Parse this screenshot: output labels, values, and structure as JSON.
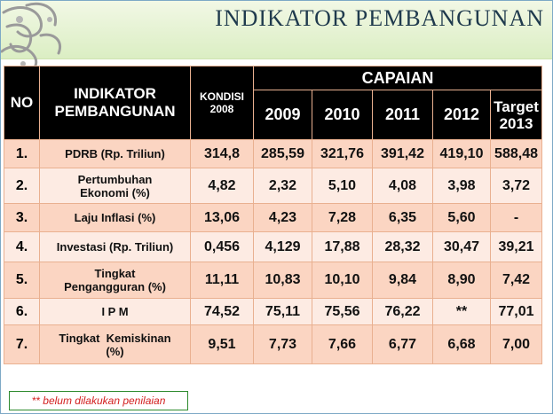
{
  "slide": {
    "title": "INDIKATOR PEMBANGUNAN"
  },
  "colors": {
    "header_bg": "#000000",
    "row_odd": "#fbd5c2",
    "row_even": "#fdebe3",
    "note_text": "#d21f1f",
    "title_band": "#dbeec3"
  },
  "table": {
    "header": {
      "no": "NO",
      "indikator_line1": "INDIKATOR",
      "indikator_line2": "PEMBANGUNAN",
      "kondisi_line1": "KONDISI",
      "kondisi_line2": "2008",
      "capaian": "CAPAIAN",
      "years": [
        "2009",
        "2010",
        "2011",
        "2012"
      ],
      "target_line1": "Target",
      "target_line2": "2013"
    },
    "rows": [
      {
        "no": "1.",
        "line1": "PDRB (Rp. Triliun)",
        "line2": "",
        "values": [
          "314,8",
          "285,59",
          "321,76",
          "391,42",
          "419,10",
          "588,48"
        ]
      },
      {
        "no": "2.",
        "line1": "Pertumbuhan",
        "line2": "Ekonomi (%)",
        "values": [
          "4,82",
          "2,32",
          "5,10",
          "4,08",
          "3,98",
          "3,72"
        ]
      },
      {
        "no": "3.",
        "line1": "Laju Inflasi (%)",
        "line2": "",
        "values": [
          "13,06",
          "4,23",
          "7,28",
          "6,35",
          "5,60",
          "-"
        ]
      },
      {
        "no": "4.",
        "line1": "Investasi (Rp. Triliun)",
        "line2": "",
        "values": [
          "0,456",
          "4,129",
          "17,88",
          "28,32",
          "30,47",
          "39,21"
        ]
      },
      {
        "no": "5.",
        "line1": "Tingkat",
        "line2": "Pengangguran (%)",
        "values": [
          "11,11",
          "10,83",
          "10,10",
          "9,84",
          "8,90",
          "7,42"
        ]
      },
      {
        "no": "6.",
        "line1": "I P M",
        "line2": "",
        "values": [
          "74,52",
          "75,11",
          "75,56",
          "76,22",
          "**",
          "77,01"
        ]
      },
      {
        "no": "7.",
        "line1": "Tingkat  Kemiskinan",
        "line2": "(%)",
        "values": [
          "9,51",
          "7,73",
          "7,66",
          "6,77",
          "6,68",
          "7,00"
        ]
      }
    ]
  },
  "note": "** belum dilakukan penilaian"
}
